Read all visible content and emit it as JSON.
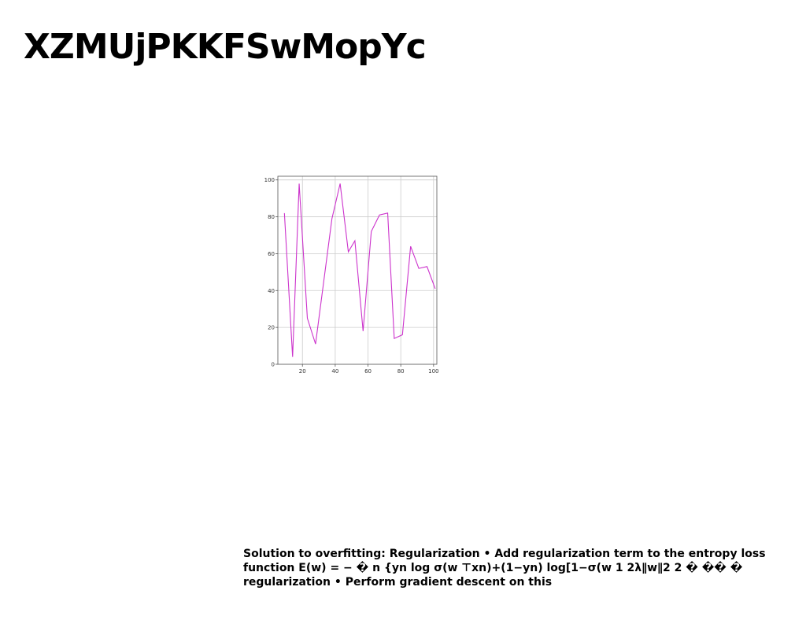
{
  "slide": {
    "title": "XZMUjPKKFSwMopYc",
    "body_text": "Solution to overfitting: Regularization • Add regularization term to the entropy loss function E(w) = − � n {yn log σ(w ⊤xn)+(1−yn) log[1−σ(w 1 2λ∥w∥2 2 � �� � regularization • Perform gradient descent on this"
  },
  "chart_data": {
    "type": "line",
    "title": "",
    "xlabel": "",
    "ylabel": "",
    "xlim": [
      5,
      102
    ],
    "ylim": [
      0,
      102
    ],
    "x_ticks": [
      "20",
      "40",
      "60",
      "80",
      "100"
    ],
    "y_ticks": [
      "0",
      "20",
      "40",
      "60",
      "80",
      "100"
    ],
    "grid": true,
    "legend": "none",
    "series": [
      {
        "color": "#cc33cc",
        "x": [
          9,
          14,
          18,
          23,
          28,
          33,
          38,
          43,
          48,
          52,
          57,
          62,
          67,
          72,
          76,
          81,
          86,
          91,
          96,
          101
        ],
        "y": [
          82,
          4,
          98,
          25,
          11,
          45,
          79,
          98,
          61,
          67,
          18,
          72,
          81,
          82,
          14,
          16,
          64,
          52,
          53,
          41
        ]
      }
    ]
  }
}
